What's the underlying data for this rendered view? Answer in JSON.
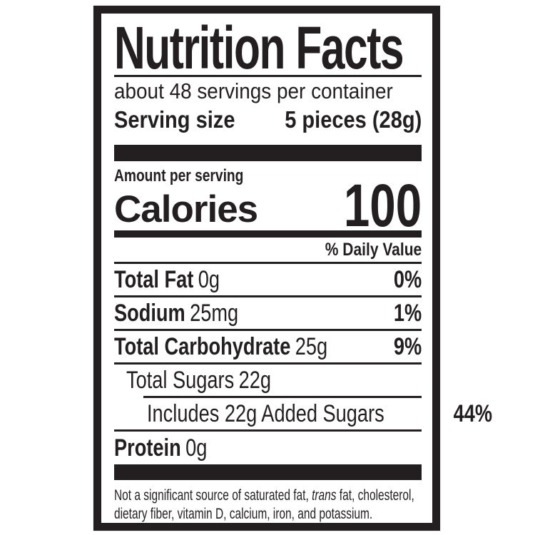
{
  "colors": {
    "ink": "#231f20",
    "background": "#ffffff"
  },
  "label": {
    "title": "Nutrition Facts",
    "servings_per_container": "about 48 servings per container",
    "serving_size": {
      "label": "Serving size",
      "value": "5 pieces (28g)"
    },
    "amount_per_serving": "Amount per serving",
    "calories": {
      "label": "Calories",
      "value": "100"
    },
    "daily_value_header": "% Daily Value",
    "nutrients": [
      {
        "name": "Total Fat",
        "amount": "0g",
        "dv": "0%"
      },
      {
        "name": "Sodium",
        "amount": "25mg",
        "dv": "1%"
      },
      {
        "name": "Total Carbohydrate",
        "amount": "25g",
        "dv": "9%"
      },
      {
        "name": "Total Sugars",
        "amount": "22g",
        "dv": ""
      },
      {
        "name": "Includes 22g Added Sugars",
        "amount": "",
        "dv": "44%"
      },
      {
        "name": "Protein",
        "amount": "0g",
        "dv": ""
      }
    ],
    "footnote": {
      "line1_pre": "Not a significant source of saturated fat, ",
      "line1_italic": "trans",
      "line1_post": " fat, cholesterol,",
      "line2": "dietary fiber, vitamin D, calcium, iron, and potassium."
    }
  }
}
